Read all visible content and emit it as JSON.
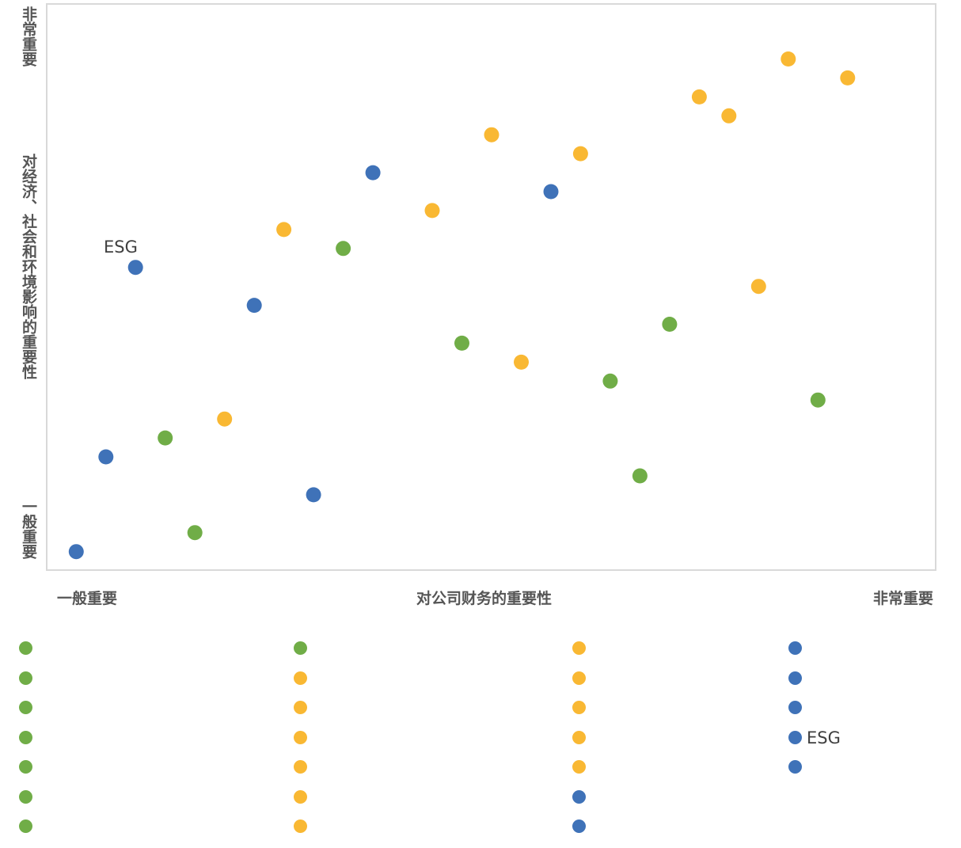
{
  "chart_data": {
    "type": "scatter",
    "y_axis": {
      "top_label": "非常重要",
      "title": "对经济、社会和环境影响的重要性",
      "bottom_label": "一般重要"
    },
    "x_axis": {
      "left_label": "一般重要",
      "title": "对公司财务的重要性",
      "right_label": "非常重要"
    },
    "xlim": [
      0,
      30
    ],
    "ylim": [
      0,
      30
    ],
    "grid": false,
    "colors": {
      "green": "#70ad47",
      "orange": "#f9b833",
      "blue": "#3f72b8"
    },
    "points": [
      {
        "x": 1,
        "y": 1,
        "color": "blue"
      },
      {
        "x": 2,
        "y": 6,
        "color": "blue"
      },
      {
        "x": 3,
        "y": 16,
        "color": "blue",
        "label": "ESG"
      },
      {
        "x": 4,
        "y": 7,
        "color": "green"
      },
      {
        "x": 5,
        "y": 2,
        "color": "green"
      },
      {
        "x": 6,
        "y": 8,
        "color": "orange"
      },
      {
        "x": 7,
        "y": 14,
        "color": "blue"
      },
      {
        "x": 8,
        "y": 18,
        "color": "orange"
      },
      {
        "x": 9,
        "y": 4,
        "color": "blue"
      },
      {
        "x": 10,
        "y": 17,
        "color": "green"
      },
      {
        "x": 11,
        "y": 21,
        "color": "blue"
      },
      {
        "x": 13,
        "y": 19,
        "color": "orange"
      },
      {
        "x": 14,
        "y": 12,
        "color": "green"
      },
      {
        "x": 15,
        "y": 23,
        "color": "orange"
      },
      {
        "x": 16,
        "y": 11,
        "color": "orange"
      },
      {
        "x": 17,
        "y": 20,
        "color": "blue"
      },
      {
        "x": 18,
        "y": 22,
        "color": "orange"
      },
      {
        "x": 19,
        "y": 10,
        "color": "green"
      },
      {
        "x": 20,
        "y": 5,
        "color": "green"
      },
      {
        "x": 21,
        "y": 13,
        "color": "green"
      },
      {
        "x": 22,
        "y": 25,
        "color": "orange"
      },
      {
        "x": 23,
        "y": 24,
        "color": "orange"
      },
      {
        "x": 24,
        "y": 15,
        "color": "orange"
      },
      {
        "x": 25,
        "y": 27,
        "color": "orange"
      },
      {
        "x": 26,
        "y": 9,
        "color": "green"
      },
      {
        "x": 27,
        "y": 26,
        "color": "orange"
      }
    ]
  },
  "legend": {
    "columns": [
      [
        {
          "color": "green",
          "label": ""
        },
        {
          "color": "green",
          "label": ""
        },
        {
          "color": "green",
          "label": ""
        },
        {
          "color": "green",
          "label": ""
        },
        {
          "color": "green",
          "label": ""
        },
        {
          "color": "green",
          "label": ""
        },
        {
          "color": "green",
          "label": ""
        }
      ],
      [
        {
          "color": "green",
          "label": ""
        },
        {
          "color": "orange",
          "label": ""
        },
        {
          "color": "orange",
          "label": ""
        },
        {
          "color": "orange",
          "label": ""
        },
        {
          "color": "orange",
          "label": ""
        },
        {
          "color": "orange",
          "label": ""
        },
        {
          "color": "orange",
          "label": ""
        }
      ],
      [
        {
          "color": "orange",
          "label": ""
        },
        {
          "color": "orange",
          "label": ""
        },
        {
          "color": "orange",
          "label": ""
        },
        {
          "color": "orange",
          "label": ""
        },
        {
          "color": "orange",
          "label": ""
        },
        {
          "color": "blue",
          "label": ""
        },
        {
          "color": "blue",
          "label": ""
        }
      ],
      [
        {
          "color": "blue",
          "label": ""
        },
        {
          "color": "blue",
          "label": ""
        },
        {
          "color": "blue",
          "label": ""
        },
        {
          "color": "blue",
          "label": "ESG"
        },
        {
          "color": "blue",
          "label": ""
        }
      ]
    ]
  }
}
